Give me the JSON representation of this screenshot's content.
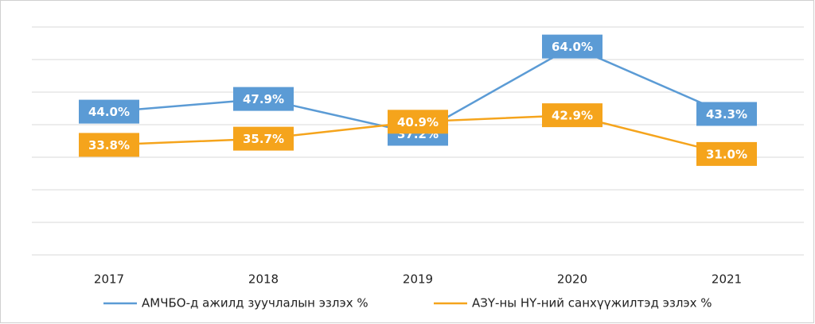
{
  "chart_data": {
    "type": "line",
    "categories": [
      "2017",
      "2018",
      "2019",
      "2020",
      "2021"
    ],
    "series": [
      {
        "name": "АМЧБО-д ажилд зуучлалын эзлэх %",
        "color": "#5b9bd5",
        "values": [
          44.0,
          47.9,
          37.2,
          64.0,
          43.3
        ],
        "value_labels": [
          "44.0%",
          "47.9%",
          "37.2%",
          "64.0%",
          "43.3%"
        ]
      },
      {
        "name": "АЗҮ-ны НҮ-ний санхүүжилтэд эзлэх %",
        "color": "#f5a41c",
        "values": [
          33.8,
          35.7,
          40.9,
          42.9,
          31.0
        ],
        "value_labels": [
          "33.8%",
          "35.7%",
          "40.9%",
          "42.9%",
          "31.0%"
        ]
      }
    ],
    "ylim": [
      0,
      70
    ],
    "yticks": [
      0,
      10,
      20,
      30,
      40,
      50,
      60,
      70
    ],
    "grid": true,
    "legend": "bottom"
  }
}
